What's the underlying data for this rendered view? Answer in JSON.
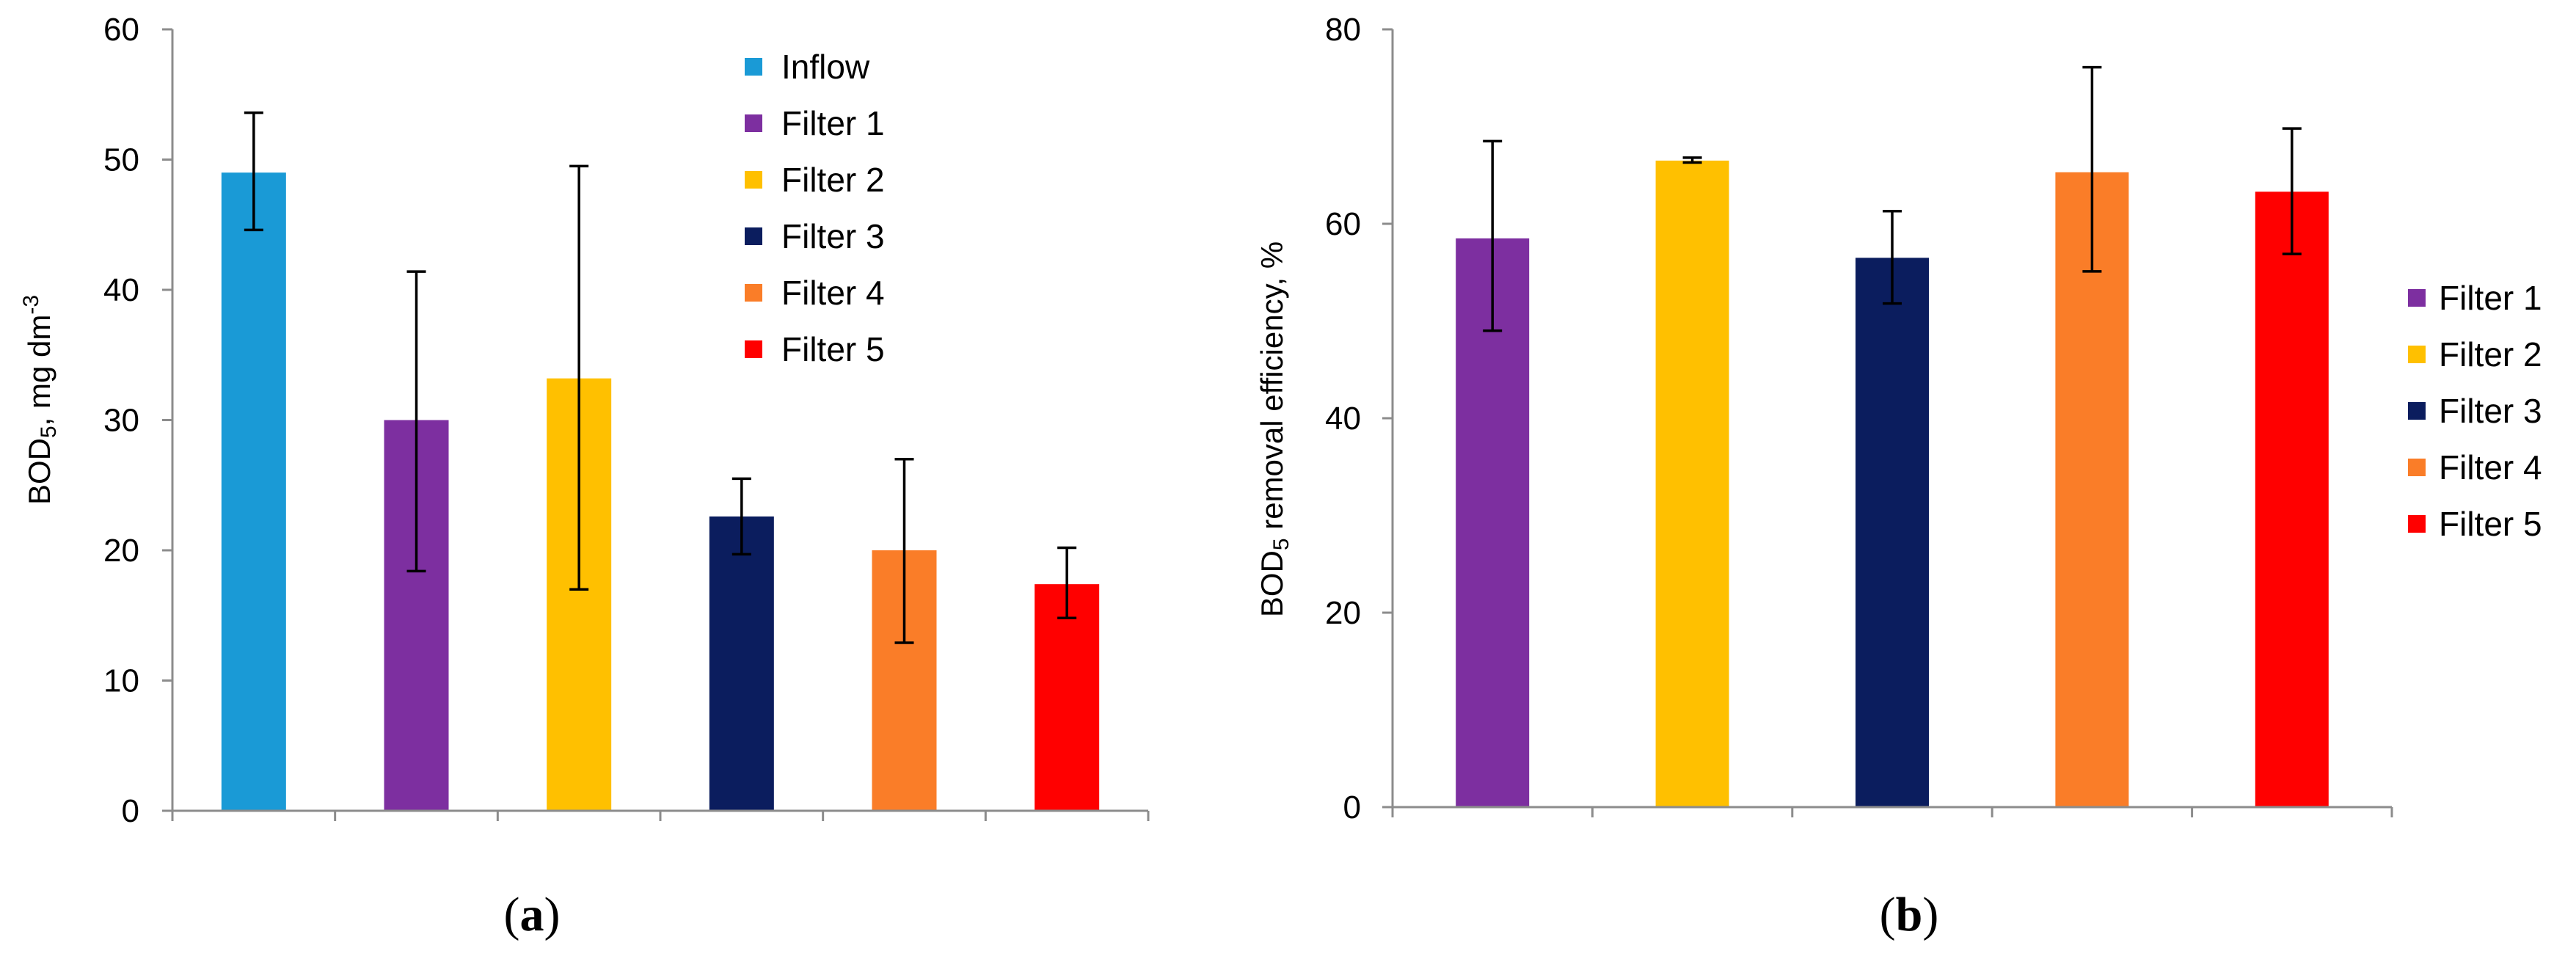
{
  "panels": [
    {
      "panel_label": {
        "open": "(",
        "letter": "a",
        "close": ")"
      },
      "ylabel": {
        "main": "BOD",
        "sub": "5",
        "unit": ", mg dm",
        "sup": "-3"
      }
    },
    {
      "panel_label": {
        "open": "(",
        "letter": "b",
        "close": ")"
      },
      "ylabel": {
        "main": "BOD",
        "sub": "5",
        "unit": " removal efficiency, %",
        "sup": ""
      }
    }
  ],
  "chart_data": [
    {
      "type": "bar",
      "title": "",
      "xlabel": "",
      "ylabel": "BOD5, mg dm-3",
      "ylim": [
        0,
        60
      ],
      "yticks": [
        0,
        10,
        20,
        30,
        40,
        50,
        60
      ],
      "categories": [
        "Inflow",
        "Filter 1",
        "Filter 2",
        "Filter 3",
        "Filter 4",
        "Filter 5"
      ],
      "values": [
        49,
        30,
        33.2,
        22.6,
        20,
        17.4
      ],
      "error_low": [
        44.6,
        18.4,
        17,
        19.7,
        12.9,
        14.8
      ],
      "error_high": [
        53.6,
        41.4,
        49.5,
        25.5,
        27,
        20.2
      ],
      "colors": [
        "#1a9ad6",
        "#7d2fa0",
        "#ffc000",
        "#0b1d5e",
        "#fa7d28",
        "#ff0000"
      ],
      "legend": {
        "position": "top-right-inside",
        "entries": [
          "Inflow",
          "Filter 1",
          "Filter 2",
          "Filter 3",
          "Filter 4",
          "Filter 5"
        ]
      }
    },
    {
      "type": "bar",
      "title": "",
      "xlabel": "",
      "ylabel": "BOD5 removal efficiency, %",
      "ylim": [
        0,
        80
      ],
      "yticks": [
        0,
        20,
        40,
        60,
        80
      ],
      "categories": [
        "Filter 1",
        "Filter 2",
        "Filter 3",
        "Filter 4",
        "Filter 5"
      ],
      "values": [
        58.5,
        66.5,
        56.5,
        65.3,
        63.3
      ],
      "error_low": [
        49,
        66.3,
        51.8,
        55.1,
        56.9
      ],
      "error_high": [
        68.5,
        66.8,
        61.3,
        76.1,
        69.8
      ],
      "colors": [
        "#7d2fa0",
        "#ffc000",
        "#0b1d5e",
        "#fa7d28",
        "#ff0000"
      ],
      "legend": {
        "position": "right-outside",
        "entries": [
          "Filter 1",
          "Filter 2",
          "Filter 3",
          "Filter 4",
          "Filter 5"
        ]
      }
    }
  ]
}
